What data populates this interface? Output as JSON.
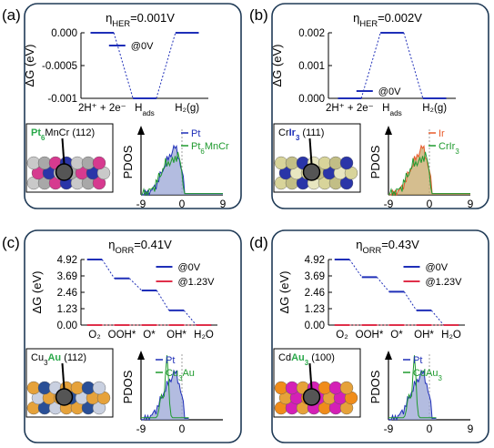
{
  "colors": {
    "panel_border": "#1f3a56",
    "blue": "#1f2fb8",
    "red": "#e0304a",
    "green": "#1f9a2e",
    "orange": "#e85a2a",
    "pt_fill": "#9aa6d6",
    "ir_fill": "#c7a86a",
    "au_highlight": "#2aa84a",
    "ir_highlight": "#1f2fb8"
  },
  "panels": [
    {
      "label": "(a)",
      "eta_prefix": "η",
      "eta_sub": "HER",
      "eta_value": "=0.001V",
      "structure": {
        "name_1": "Pt",
        "name_1_sub": "6",
        "name_2": "MnCr",
        "facet": "(112)"
      },
      "pdos_ylabel": "PDOS",
      "pdos_xticks": [
        "-9",
        "0",
        "9"
      ],
      "pdos_legend": [
        {
          "name": "Pt",
          "color": "#1f2fb8"
        },
        {
          "name": "Pt",
          "sub": "6",
          "tail": "MnCr",
          "color": "#1f9a2e"
        }
      ]
    },
    {
      "label": "(b)",
      "eta_prefix": "η",
      "eta_sub": "HER",
      "eta_value": "=0.002V",
      "structure": {
        "name_1": "Cr",
        "name_2": "Ir",
        "name_2_sub": "3",
        "facet": "(111)"
      },
      "pdos_ylabel": "PDOS",
      "pdos_xticks": [
        "-9",
        "0",
        "9"
      ],
      "pdos_legend": [
        {
          "name": "Ir",
          "color": "#e85a2a"
        },
        {
          "name": "CrIr",
          "sub": "3",
          "color": "#1f9a2e"
        }
      ]
    },
    {
      "label": "(c)",
      "eta_prefix": "η",
      "eta_sub": "ORR",
      "eta_value": "=0.41V",
      "structure": {
        "name_1": "Cu",
        "name_1_sub": "3",
        "name_2": "Au",
        "facet": "(112)"
      },
      "pdos_ylabel": "PDOS",
      "pdos_xticks": [
        "-9",
        "0"
      ],
      "pdos_legend": [
        {
          "name": "Pt",
          "color": "#1f2fb8"
        },
        {
          "name": "Cu",
          "sub": "3",
          "tail": "Au",
          "color": "#1f9a2e"
        }
      ]
    },
    {
      "label": "(d)",
      "eta_prefix": "η",
      "eta_sub": "ORR",
      "eta_value": "=0.43V",
      "structure": {
        "name_1": "Cd",
        "name_2": "Au",
        "name_2_sub": "3",
        "facet": "(100)"
      },
      "pdos_ylabel": "PDOS",
      "pdos_xticks": [
        "-9",
        "0",
        "9"
      ],
      "pdos_legend": [
        {
          "name": "Pt",
          "color": "#1f2fb8"
        },
        {
          "name": "CdAu",
          "sub": "3",
          "color": "#1f9a2e"
        }
      ]
    }
  ],
  "chart_data": [
    {
      "panel": "(a)",
      "type": "line",
      "ylabel": "ΔG (eV)",
      "ylim": [
        -0.001,
        0.0
      ],
      "yticks": [
        "0.000",
        "-0.0005",
        "-0.001"
      ],
      "x_categories": [
        "2H⁺ + 2e⁻",
        "H_ads",
        "H₂(g)"
      ],
      "series": [
        {
          "name": "@0V",
          "color": "#1f2fb8",
          "values": [
            0.0,
            -0.001,
            0.0
          ]
        }
      ]
    },
    {
      "panel": "(b)",
      "type": "line",
      "ylabel": "ΔG (eV)",
      "ylim": [
        0.0,
        0.002
      ],
      "yticks": [
        "0.002",
        "0.001",
        "0.000"
      ],
      "x_categories": [
        "2H⁺ + 2e⁻",
        "H_ads",
        "H₂(g)"
      ],
      "series": [
        {
          "name": "@0V",
          "color": "#1f2fb8",
          "values": [
            0.0,
            0.002,
            0.0
          ]
        }
      ]
    },
    {
      "panel": "(c)",
      "type": "line",
      "ylabel": "ΔG (eV)",
      "ylim": [
        0.0,
        4.92
      ],
      "yticks": [
        "4.92",
        "3.69",
        "2.46",
        "1.23",
        "0.00"
      ],
      "x_categories": [
        "O₂",
        "OOH*",
        "O*",
        "OH*",
        "H₂O"
      ],
      "series": [
        {
          "name": "@0V",
          "color": "#1f2fb8",
          "values": [
            4.92,
            3.5,
            2.6,
            1.1,
            0.0
          ]
        },
        {
          "name": "@1.23V",
          "color": "#e0304a",
          "values": [
            0.0,
            -0.19,
            0.0,
            -0.41,
            0.0
          ]
        }
      ]
    },
    {
      "panel": "(d)",
      "type": "line",
      "ylabel": "ΔG (eV)",
      "ylim": [
        0.0,
        4.92
      ],
      "yticks": [
        "4.92",
        "3.69",
        "2.46",
        "1.23",
        "0.00"
      ],
      "x_categories": [
        "O₂",
        "OOH*",
        "O*",
        "OH*",
        "H₂O"
      ],
      "series": [
        {
          "name": "@0V",
          "color": "#1f2fb8",
          "values": [
            4.92,
            3.6,
            2.5,
            1.1,
            0.0
          ]
        },
        {
          "name": "@1.23V",
          "color": "#e0304a",
          "values": [
            0.0,
            -0.1,
            -0.19,
            -0.43,
            0.0
          ]
        }
      ]
    }
  ]
}
